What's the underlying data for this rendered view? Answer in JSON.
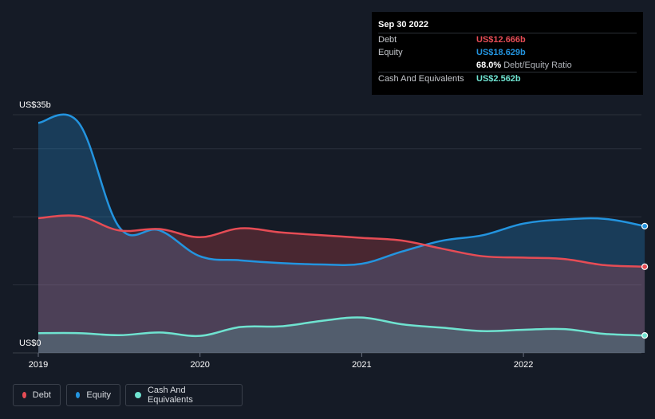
{
  "tooltip": {
    "date": "Sep 30 2022",
    "debt_label": "Debt",
    "debt_value": "US$12.666b",
    "equity_label": "Equity",
    "equity_value": "US$18.629b",
    "ratio_pct": "68.0%",
    "ratio_label": "Debt/Equity Ratio",
    "cash_label": "Cash And Equivalents",
    "cash_value": "US$2.562b"
  },
  "colors": {
    "debt": "#e64c55",
    "equity": "#2394df",
    "cash": "#6fe3d0",
    "background": "#151b26"
  },
  "legend": [
    {
      "label": "Debt",
      "color": "#e64c55"
    },
    {
      "label": "Equity",
      "color": "#2394df"
    },
    {
      "label": "Cash And Equivalents",
      "color": "#6fe3d0"
    }
  ],
  "chart_data": {
    "type": "area",
    "y_top_label": "US$35b",
    "y_bottom_label": "US$0",
    "ylim": [
      0,
      35
    ],
    "xlim": [
      2019.0,
      2022.75
    ],
    "x_ticks": [
      {
        "x": 2019,
        "label": "2019"
      },
      {
        "x": 2020,
        "label": "2020"
      },
      {
        "x": 2021,
        "label": "2021"
      },
      {
        "x": 2022,
        "label": "2022"
      }
    ],
    "y_grid": [
      0,
      10,
      20,
      30,
      35
    ],
    "series": [
      {
        "name": "Debt",
        "key": "debt",
        "x": [
          2019.0,
          2019.25,
          2019.5,
          2019.75,
          2020.0,
          2020.25,
          2020.5,
          2020.75,
          2021.0,
          2021.25,
          2021.5,
          2021.75,
          2022.0,
          2022.25,
          2022.5,
          2022.75
        ],
        "values": [
          19.8,
          20.1,
          18.0,
          18.2,
          17.0,
          18.3,
          17.7,
          17.3,
          16.9,
          16.5,
          15.3,
          14.2,
          14.0,
          13.8,
          12.9,
          12.666
        ]
      },
      {
        "name": "Equity",
        "key": "equity",
        "x": [
          2019.0,
          2019.25,
          2019.5,
          2019.75,
          2020.0,
          2020.25,
          2020.5,
          2020.75,
          2021.0,
          2021.25,
          2021.5,
          2021.75,
          2022.0,
          2022.25,
          2022.5,
          2022.75
        ],
        "values": [
          33.8,
          33.8,
          18.5,
          18.0,
          14.2,
          13.6,
          13.2,
          13.0,
          13.1,
          14.9,
          16.5,
          17.3,
          19.0,
          19.6,
          19.7,
          18.629
        ]
      },
      {
        "name": "Cash And Equivalents",
        "key": "cash",
        "x": [
          2019.0,
          2019.25,
          2019.5,
          2019.75,
          2020.0,
          2020.25,
          2020.5,
          2020.75,
          2021.0,
          2021.25,
          2021.5,
          2021.75,
          2022.0,
          2022.25,
          2022.5,
          2022.75
        ],
        "values": [
          2.9,
          2.9,
          2.6,
          3.0,
          2.5,
          3.8,
          3.9,
          4.7,
          5.2,
          4.2,
          3.7,
          3.2,
          3.4,
          3.5,
          2.8,
          2.562
        ]
      }
    ]
  }
}
